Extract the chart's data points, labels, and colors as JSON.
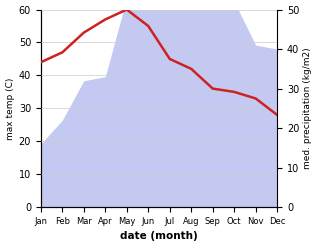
{
  "months": [
    "Jan",
    "Feb",
    "Mar",
    "Apr",
    "May",
    "Jun",
    "Jul",
    "Aug",
    "Sep",
    "Oct",
    "Nov",
    "Dec"
  ],
  "max_temp_C": [
    44,
    47,
    53,
    57,
    60,
    55,
    45,
    42,
    36,
    35,
    33,
    28
  ],
  "precipitation_mm": [
    16,
    22,
    32,
    33,
    53,
    54,
    52,
    58,
    57,
    52,
    41,
    40
  ],
  "temp_ylim": [
    0,
    60
  ],
  "precip_ylim": [
    0,
    50
  ],
  "temp_color": "#cc2222",
  "precip_fill_color": "#b0b8ee",
  "precip_fill_alpha": 0.75,
  "ylabel_left": "max temp (C)",
  "ylabel_right": "med. precipitation (kg/m2)",
  "xlabel": "date (month)",
  "bg_color": "#ffffff",
  "grid_color": "#cccccc"
}
